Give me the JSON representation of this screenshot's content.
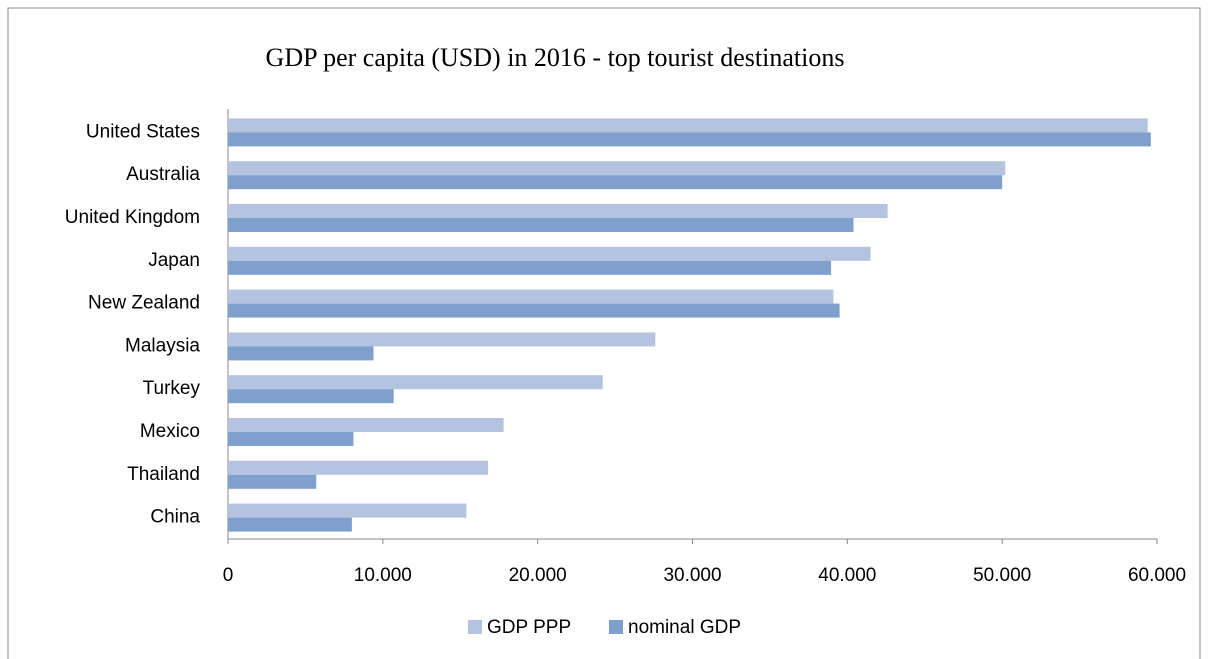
{
  "chart_data": {
    "type": "hbar",
    "title": "GDP per capita (USD) in 2016 - top tourist destinations",
    "categories": [
      "United States",
      "Australia",
      "United Kingdom",
      "Japan",
      "New Zealand",
      "Malaysia",
      "Turkey",
      "Mexico",
      "Thailand",
      "China"
    ],
    "series": [
      {
        "name": "GDP PPP",
        "color": "#b4c3e0",
        "values": [
          59400,
          50200,
          42600,
          41500,
          39100,
          27600,
          24200,
          17800,
          16800,
          15400
        ]
      },
      {
        "name": "nominal GDP",
        "color": "#7f9fcc",
        "values": [
          59600,
          50000,
          40400,
          38950,
          39500,
          9400,
          10700,
          8100,
          5700,
          8000
        ]
      }
    ],
    "xlim": [
      0,
      60000
    ],
    "xticks": [
      0,
      {
        "value": 10000,
        "label": "10.000"
      },
      {
        "value": 20000,
        "label": "20.000"
      },
      {
        "value": 30000,
        "label": "30.000"
      },
      {
        "value": 40000,
        "label": "40.000"
      },
      {
        "value": 50000,
        "label": "50.000"
      },
      {
        "value": 60000,
        "label": "60.000"
      }
    ],
    "legend": "bottom"
  }
}
